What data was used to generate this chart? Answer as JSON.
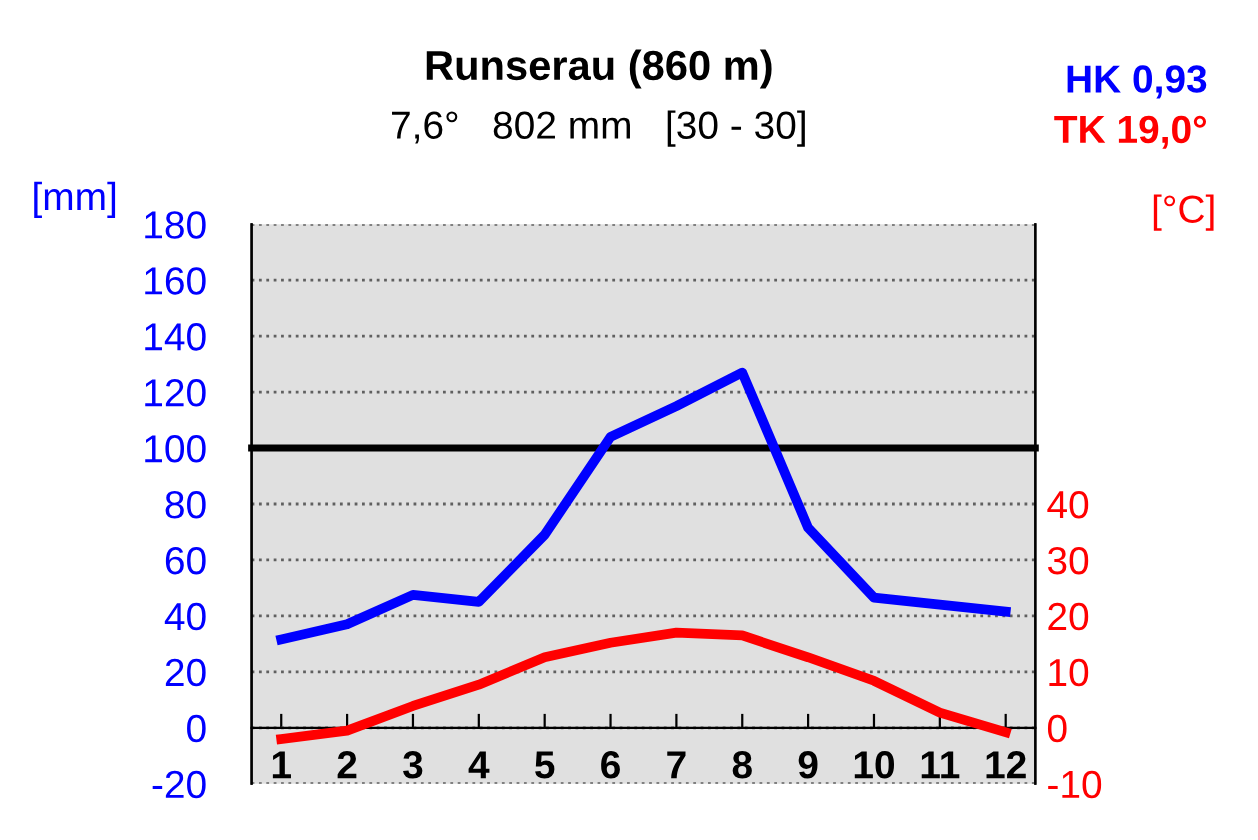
{
  "chart_data": {
    "type": "line",
    "title": "Runserau (860 m)",
    "subtitle": "7,6°   802 mm   [30 - 30]",
    "ylabel": "[mm]",
    "y2label": "[°C]",
    "categories": [
      "1",
      "2",
      "3",
      "4",
      "5",
      "6",
      "7",
      "8",
      "9",
      "10",
      "11",
      "12"
    ],
    "series": [
      {
        "color": "#0000ff",
        "values": [
          31.6,
          37,
          47.5,
          45,
          69,
          104,
          115,
          127,
          71.5,
          46.5,
          44,
          41.5
        ]
      },
      {
        "color": "#ff0000",
        "axis": "y2",
        "values": [
          -2,
          -0.5,
          3.9,
          7.7,
          12.6,
          15.2,
          17,
          16.5,
          12.6,
          8.4,
          2.7,
          -0.8
        ]
      }
    ],
    "ylim": [
      -20,
      180
    ],
    "yticks": [
      -20,
      0,
      20,
      40,
      60,
      80,
      100,
      120,
      140,
      160,
      180
    ],
    "y2lim": [
      -10,
      90
    ],
    "y2ticks": [
      -10,
      0,
      10,
      20,
      30,
      40
    ],
    "ref_lines": [
      {
        "axis": "y",
        "value": 100,
        "color": "#000000"
      }
    ],
    "annotations": [
      "HK 0,93",
      "TK 19,0°"
    ],
    "grid": "y",
    "legend": false,
    "marker": "none",
    "line_style": "solid"
  }
}
